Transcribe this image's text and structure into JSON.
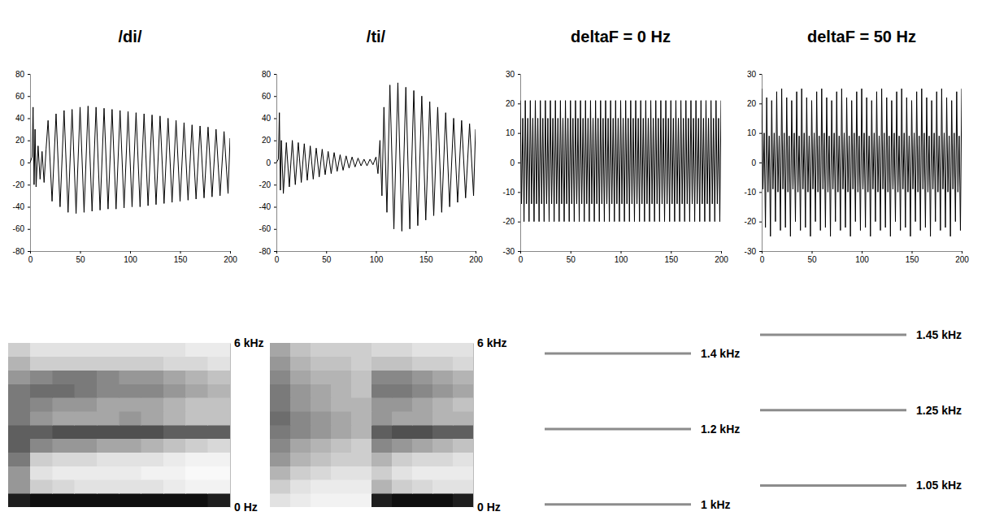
{
  "chart_data": [
    {
      "type": "line",
      "title": "/di/",
      "color": "#000000",
      "xlim": [
        0,
        200
      ],
      "xticks": [
        0,
        50,
        100,
        150,
        200
      ],
      "ylim": [
        -80,
        80
      ],
      "yticks": [
        -80,
        -60,
        -40,
        -20,
        0,
        20,
        40,
        60,
        80
      ],
      "x": [
        0,
        2,
        3,
        4,
        5,
        6,
        8,
        10,
        12,
        14,
        16,
        18,
        22,
        26,
        30,
        34,
        38,
        42,
        46,
        50,
        54,
        58,
        62,
        66,
        70,
        74,
        78,
        82,
        86,
        90,
        94,
        98,
        102,
        106,
        110,
        114,
        118,
        122,
        126,
        130,
        134,
        138,
        142,
        146,
        150,
        154,
        158,
        162,
        166,
        170,
        174,
        178,
        182,
        186,
        190,
        194,
        198,
        200
      ],
      "values": [
        0,
        5,
        50,
        -20,
        30,
        -22,
        15,
        -15,
        10,
        -18,
        12,
        38,
        -35,
        44,
        -40,
        47,
        -45,
        48,
        -46,
        50,
        -45,
        51,
        -44,
        50,
        -43,
        49,
        -42,
        48,
        -42,
        47,
        -41,
        46,
        -40,
        45,
        -40,
        44,
        -39,
        43,
        -38,
        42,
        -37,
        40,
        -36,
        38,
        -35,
        36,
        -34,
        34,
        -33,
        33,
        -32,
        32,
        -31,
        30,
        -30,
        28,
        -28,
        22
      ]
    },
    {
      "type": "line",
      "title": "/ti/",
      "color": "#000000",
      "xlim": [
        0,
        200
      ],
      "xticks": [
        0,
        50,
        100,
        150,
        200
      ],
      "ylim": [
        -80,
        80
      ],
      "yticks": [
        -80,
        -60,
        -40,
        -20,
        0,
        20,
        40,
        60,
        80
      ],
      "x": [
        0,
        2,
        3,
        4,
        5,
        7,
        10,
        13,
        16,
        19,
        22,
        25,
        28,
        31,
        34,
        37,
        40,
        43,
        46,
        49,
        52,
        55,
        58,
        61,
        64,
        67,
        70,
        73,
        76,
        79,
        82,
        85,
        88,
        91,
        94,
        97,
        100,
        102,
        104,
        106,
        108,
        111,
        114,
        118,
        122,
        126,
        130,
        134,
        138,
        142,
        146,
        150,
        154,
        158,
        162,
        166,
        170,
        174,
        178,
        182,
        186,
        190,
        194,
        198,
        200
      ],
      "values": [
        0,
        3,
        45,
        -25,
        20,
        -28,
        18,
        -22,
        20,
        -20,
        18,
        -18,
        17,
        -16,
        15,
        -15,
        13,
        -13,
        12,
        -11,
        10,
        -10,
        9,
        -8,
        7,
        -7,
        6,
        -5,
        5,
        -4,
        4,
        -3,
        3,
        -3,
        3,
        -2,
        5,
        -10,
        20,
        -30,
        50,
        -45,
        70,
        -60,
        72,
        -62,
        68,
        -60,
        65,
        -57,
        60,
        -52,
        55,
        -48,
        50,
        -45,
        45,
        -40,
        40,
        -36,
        38,
        -32,
        35,
        -30,
        30
      ]
    },
    {
      "type": "line",
      "title": "deltaF = 0 Hz",
      "color": "#000000",
      "xlim": [
        0,
        200
      ],
      "xticks": [
        0,
        50,
        100,
        150,
        200
      ],
      "ylim": [
        -30,
        30
      ],
      "yticks": [
        -30,
        -20,
        -10,
        0,
        10,
        20,
        30
      ],
      "x": [
        0,
        1.25,
        2.5,
        3.75,
        5,
        6.25,
        7.5,
        8.75,
        10,
        11.25,
        12.5,
        13.75,
        15,
        16.25,
        17.5,
        18.75,
        20,
        21.25,
        22.5,
        23.75,
        25,
        26.25,
        27.5,
        28.75,
        30,
        31.25,
        32.5,
        33.75,
        35,
        36.25,
        37.5,
        38.75,
        40,
        41.25,
        42.5,
        43.75,
        45,
        46.25,
        47.5,
        48.75,
        50,
        51.25,
        52.5,
        53.75,
        55,
        56.25,
        57.5,
        58.75,
        60,
        61.25,
        62.5,
        63.75,
        65,
        66.25,
        67.5,
        68.75,
        70,
        71.25,
        72.5,
        73.75,
        75,
        76.25,
        77.5,
        78.75,
        80,
        81.25,
        82.5,
        83.75,
        85,
        86.25,
        87.5,
        88.75,
        90,
        91.25,
        92.5,
        93.75,
        95,
        96.25,
        97.5,
        98.75,
        100,
        101.25,
        102.5,
        103.75,
        105,
        106.25,
        107.5,
        108.75,
        110,
        111.25,
        112.5,
        113.75,
        115,
        116.25,
        117.5,
        118.75,
        120,
        121.25,
        122.5,
        123.75,
        125,
        126.25,
        127.5,
        128.75,
        130,
        131.25,
        132.5,
        133.75,
        135,
        136.25,
        137.5,
        138.75,
        140,
        141.25,
        142.5,
        143.75,
        145,
        146.25,
        147.5,
        148.75,
        150,
        151.25,
        152.5,
        153.75,
        155,
        156.25,
        157.5,
        158.75,
        160,
        161.25,
        162.5,
        163.75,
        165,
        166.25,
        167.5,
        168.75,
        170,
        171.25,
        172.5,
        173.75,
        175,
        176.25,
        177.5,
        178.75,
        180,
        181.25,
        182.5,
        183.75,
        185,
        186.25,
        187.5,
        188.75,
        190,
        191.25,
        192.5,
        193.75,
        195,
        196.25,
        197.5,
        198.75,
        200
      ],
      "values": [
        21,
        -14,
        15,
        -20,
        21,
        -14,
        15,
        -20,
        21,
        -14,
        15,
        -20,
        21,
        -14,
        15,
        -20,
        21,
        -14,
        15,
        -20,
        21,
        -14,
        15,
        -20,
        21,
        -14,
        15,
        -20,
        21,
        -14,
        15,
        -20,
        21,
        -14,
        15,
        -20,
        21,
        -14,
        15,
        -20,
        21,
        -14,
        15,
        -20,
        21,
        -14,
        15,
        -20,
        21,
        -14,
        15,
        -20,
        21,
        -14,
        15,
        -20,
        21,
        -14,
        15,
        -20,
        21,
        -14,
        15,
        -20,
        21,
        -14,
        15,
        -20,
        21,
        -14,
        15,
        -20,
        21,
        -14,
        15,
        -20,
        21,
        -14,
        15,
        -20,
        21,
        -14,
        15,
        -20,
        21,
        -14,
        15,
        -20,
        21,
        -14,
        15,
        -20,
        21,
        -14,
        15,
        -20,
        21,
        -14,
        15,
        -20,
        21,
        -14,
        15,
        -20,
        21,
        -14,
        15,
        -20,
        21,
        -14,
        15,
        -20,
        21,
        -14,
        15,
        -20,
        21,
        -14,
        15,
        -20,
        21,
        -14,
        15,
        -20,
        21,
        -14,
        15,
        -20,
        21,
        -14,
        15,
        -20,
        21,
        -14,
        15,
        -20,
        21,
        -14,
        15,
        -20,
        21,
        -14,
        15,
        -20,
        21,
        -14,
        15,
        -20,
        21,
        -14,
        15,
        -20,
        21,
        -14,
        15,
        -20,
        21,
        -14,
        15,
        -20,
        21
      ]
    },
    {
      "type": "line",
      "title": "deltaF = 50 Hz",
      "color": "#000000",
      "xlim": [
        0,
        200
      ],
      "xticks": [
        0,
        50,
        100,
        150,
        200
      ],
      "ylim": [
        -30,
        30
      ],
      "yticks": [
        -30,
        -20,
        -10,
        0,
        10,
        20,
        30
      ],
      "x": [
        0,
        1.25,
        2.5,
        3.75,
        5,
        6.25,
        7.5,
        8.75,
        10,
        11.25,
        12.5,
        13.75,
        15,
        16.25,
        17.5,
        18.75,
        20,
        21.25,
        22.5,
        23.75,
        25,
        26.25,
        27.5,
        28.75,
        30,
        31.25,
        32.5,
        33.75,
        35,
        36.25,
        37.5,
        38.75,
        40,
        41.25,
        42.5,
        43.75,
        45,
        46.25,
        47.5,
        48.75,
        50,
        51.25,
        52.5,
        53.75,
        55,
        56.25,
        57.5,
        58.75,
        60,
        61.25,
        62.5,
        63.75,
        65,
        66.25,
        67.5,
        68.75,
        70,
        71.25,
        72.5,
        73.75,
        75,
        76.25,
        77.5,
        78.75,
        80,
        81.25,
        82.5,
        83.75,
        85,
        86.25,
        87.5,
        88.75,
        90,
        91.25,
        92.5,
        93.75,
        95,
        96.25,
        97.5,
        98.75,
        100,
        101.25,
        102.5,
        103.75,
        105,
        106.25,
        107.5,
        108.75,
        110,
        111.25,
        112.5,
        113.75,
        115,
        116.25,
        117.5,
        118.75,
        120,
        121.25,
        122.5,
        123.75,
        125,
        126.25,
        127.5,
        128.75,
        130,
        131.25,
        132.5,
        133.75,
        135,
        136.25,
        137.5,
        138.75,
        140,
        141.25,
        142.5,
        143.75,
        145,
        146.25,
        147.5,
        148.75,
        150,
        151.25,
        152.5,
        153.75,
        155,
        156.25,
        157.5,
        158.75,
        160,
        161.25,
        162.5,
        163.75,
        165,
        166.25,
        167.5,
        168.75,
        170,
        171.25,
        172.5,
        173.75,
        175,
        176.25,
        177.5,
        178.75,
        180,
        181.25,
        182.5,
        183.75,
        185,
        186.25,
        187.5,
        188.75,
        190,
        191.25,
        192.5,
        193.75,
        195,
        196.25,
        197.5,
        198.75,
        200
      ],
      "values": [
        25,
        -9,
        10,
        -22,
        22,
        -10,
        9,
        -25,
        21,
        -9,
        10,
        -20,
        24,
        -10,
        9,
        -23,
        25,
        -9,
        10,
        -22,
        22,
        -10,
        9,
        -25,
        21,
        -9,
        10,
        -20,
        24,
        -10,
        9,
        -23,
        25,
        -9,
        10,
        -22,
        22,
        -10,
        9,
        -25,
        21,
        -9,
        10,
        -20,
        24,
        -10,
        9,
        -23,
        25,
        -9,
        10,
        -22,
        22,
        -10,
        9,
        -25,
        21,
        -9,
        10,
        -20,
        24,
        -10,
        9,
        -23,
        25,
        -9,
        10,
        -22,
        22,
        -10,
        9,
        -25,
        21,
        -9,
        10,
        -20,
        24,
        -10,
        9,
        -23,
        25,
        -9,
        10,
        -22,
        22,
        -10,
        9,
        -25,
        21,
        -9,
        10,
        -20,
        24,
        -10,
        9,
        -23,
        25,
        -9,
        10,
        -22,
        22,
        -10,
        9,
        -25,
        21,
        -9,
        10,
        -20,
        24,
        -10,
        9,
        -23,
        25,
        -9,
        10,
        -22,
        22,
        -10,
        9,
        -25,
        21,
        -9,
        10,
        -20,
        24,
        -10,
        9,
        -23,
        25,
        -9,
        10,
        -22,
        22,
        -10,
        9,
        -25,
        21,
        -9,
        10,
        -20,
        24,
        -10,
        9,
        -23,
        25,
        -9,
        10,
        -22,
        22,
        -10,
        9,
        -25,
        21,
        -9,
        10,
        -20,
        24,
        -10,
        9,
        -23,
        25
      ]
    },
    {
      "type": "heatmap",
      "tick_labels": "y",
      "xlim": [
        0,
        200
      ],
      "ylim": [
        0,
        6
      ],
      "yticks": [
        {
          "value": 0,
          "label": "0 Hz"
        },
        {
          "value": 6,
          "label": "6 kHz"
        }
      ],
      "x_bins": [
        0,
        20,
        40,
        60,
        80,
        100,
        120,
        140,
        160,
        180,
        200
      ],
      "y_bins": [
        0,
        0.5,
        1,
        1.5,
        2,
        2.5,
        3,
        3.5,
        4,
        4.5,
        5,
        5.5,
        6
      ],
      "color_range": [
        0,
        1
      ],
      "cells": [
        [
          0.9,
          0.95,
          0.95,
          0.95,
          0.95,
          0.95,
          0.95,
          0.95,
          0.95,
          0.9
        ],
        [
          0.5,
          0.3,
          0.25,
          0.2,
          0.2,
          0.2,
          0.2,
          0.15,
          0.1,
          0.1
        ],
        [
          0.5,
          0.2,
          0.15,
          0.15,
          0.15,
          0.15,
          0.1,
          0.1,
          0.05,
          0.05
        ],
        [
          0.6,
          0.3,
          0.25,
          0.25,
          0.2,
          0.2,
          0.2,
          0.15,
          0.1,
          0.1
        ],
        [
          0.7,
          0.55,
          0.5,
          0.5,
          0.45,
          0.45,
          0.4,
          0.35,
          0.3,
          0.25
        ],
        [
          0.7,
          0.7,
          0.75,
          0.75,
          0.75,
          0.75,
          0.75,
          0.7,
          0.7,
          0.7
        ],
        [
          0.6,
          0.5,
          0.45,
          0.45,
          0.45,
          0.5,
          0.45,
          0.4,
          0.35,
          0.35
        ],
        [
          0.6,
          0.55,
          0.5,
          0.5,
          0.45,
          0.45,
          0.45,
          0.4,
          0.35,
          0.35
        ],
        [
          0.6,
          0.65,
          0.65,
          0.6,
          0.55,
          0.55,
          0.55,
          0.5,
          0.45,
          0.4
        ],
        [
          0.5,
          0.55,
          0.6,
          0.6,
          0.55,
          0.5,
          0.5,
          0.45,
          0.4,
          0.35
        ],
        [
          0.4,
          0.3,
          0.3,
          0.3,
          0.3,
          0.3,
          0.3,
          0.25,
          0.25,
          0.2
        ],
        [
          0.3,
          0.2,
          0.2,
          0.2,
          0.2,
          0.2,
          0.2,
          0.2,
          0.15,
          0.15
        ]
      ]
    },
    {
      "type": "heatmap",
      "tick_labels": "y",
      "xlim": [
        0,
        200
      ],
      "ylim": [
        0,
        6
      ],
      "yticks": [
        {
          "value": 0,
          "label": "0 Hz"
        },
        {
          "value": 6,
          "label": "6 kHz"
        }
      ],
      "x_bins": [
        0,
        20,
        40,
        60,
        80,
        100,
        120,
        140,
        160,
        180,
        200
      ],
      "y_bins": [
        0,
        0.5,
        1,
        1.5,
        2,
        2.5,
        3,
        3.5,
        4,
        4.5,
        5,
        5.5,
        6
      ],
      "color_range": [
        0,
        1
      ],
      "cells": [
        [
          0.2,
          0.15,
          0.1,
          0.1,
          0.1,
          0.9,
          0.95,
          0.95,
          0.95,
          0.9
        ],
        [
          0.3,
          0.2,
          0.15,
          0.15,
          0.15,
          0.4,
          0.3,
          0.25,
          0.2,
          0.2
        ],
        [
          0.4,
          0.3,
          0.25,
          0.2,
          0.2,
          0.3,
          0.2,
          0.15,
          0.15,
          0.15
        ],
        [
          0.5,
          0.4,
          0.35,
          0.3,
          0.3,
          0.4,
          0.3,
          0.25,
          0.25,
          0.2
        ],
        [
          0.55,
          0.45,
          0.4,
          0.35,
          0.3,
          0.55,
          0.5,
          0.45,
          0.4,
          0.35
        ],
        [
          0.6,
          0.55,
          0.5,
          0.45,
          0.4,
          0.7,
          0.75,
          0.75,
          0.7,
          0.7
        ],
        [
          0.65,
          0.55,
          0.5,
          0.45,
          0.4,
          0.5,
          0.45,
          0.45,
          0.4,
          0.4
        ],
        [
          0.6,
          0.5,
          0.45,
          0.4,
          0.4,
          0.5,
          0.5,
          0.45,
          0.4,
          0.35
        ],
        [
          0.6,
          0.5,
          0.45,
          0.4,
          0.35,
          0.6,
          0.6,
          0.55,
          0.5,
          0.45
        ],
        [
          0.55,
          0.45,
          0.4,
          0.4,
          0.35,
          0.55,
          0.55,
          0.5,
          0.45,
          0.4
        ],
        [
          0.5,
          0.4,
          0.35,
          0.35,
          0.3,
          0.35,
          0.35,
          0.3,
          0.3,
          0.25
        ],
        [
          0.45,
          0.35,
          0.3,
          0.3,
          0.3,
          0.25,
          0.25,
          0.2,
          0.2,
          0.2
        ]
      ]
    },
    {
      "type": "tones",
      "color": "#8c8c8c",
      "ylim": [
        0.98,
        1.48
      ],
      "values": [
        1,
        1.2,
        1.4
      ],
      "value_labels": [
        "1 kHz",
        "1.2 kHz",
        "1.4 kHz"
      ]
    },
    {
      "type": "tones",
      "color": "#8c8c8c",
      "ylim": [
        0.98,
        1.48
      ],
      "values": [
        1.05,
        1.25,
        1.45
      ],
      "value_labels": [
        "1.05 kHz",
        "1.25 kHz",
        "1.45 kHz"
      ]
    }
  ]
}
